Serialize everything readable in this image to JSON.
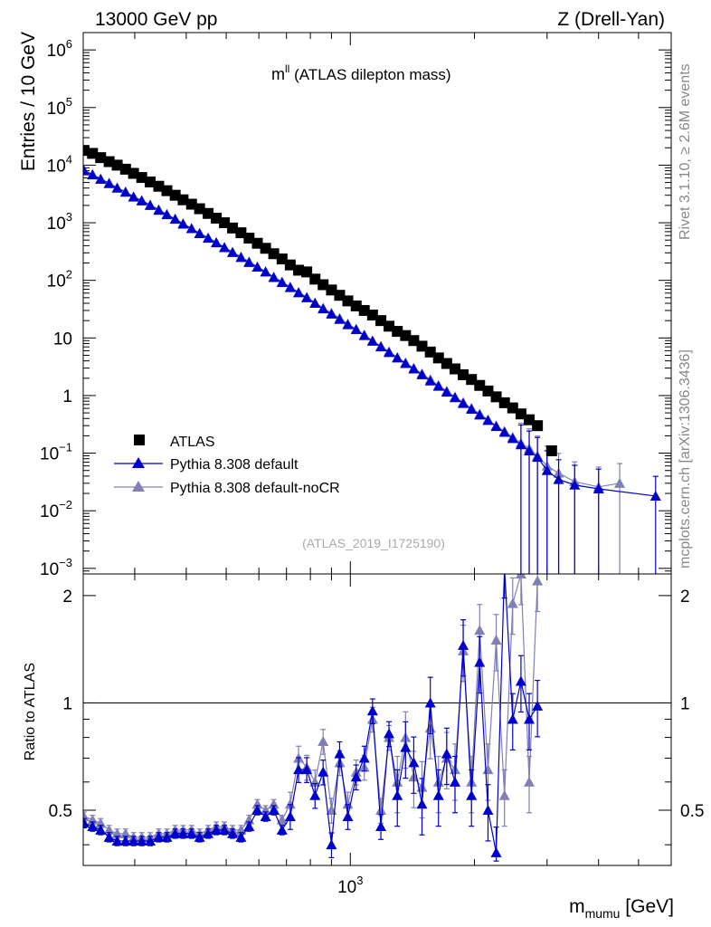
{
  "header": {
    "left": "13000 GeV pp",
    "right": "Z (Drell-Yan)",
    "side_top": "Rivet 3.1.10, ≥ 2.6M events",
    "side_bottom": "mcplots.cern.ch [arXiv:1306.3436]"
  },
  "chart_data": {
    "type": "scatter",
    "title_main": "m",
    "title_sup": "ll",
    "title_rest": " (ATLAS dilepton mass)",
    "ylabel": "Entries / 10 GeV",
    "ratio_ylabel": "Ratio to ATLAS",
    "xlabel_main": "m",
    "xlabel_sub": "mumu",
    "xlabel_unit": " [GeV]",
    "analysis": "(ATLAS_2019_I1725190)",
    "x_scale": "log",
    "y_scale": "log",
    "xlim": [
      225,
      6000
    ],
    "ylim": [
      0.0008,
      2000000
    ],
    "ratio_ylim": [
      0.35,
      2.3
    ],
    "x_ticks": [
      {
        "value": 1000,
        "base": "10",
        "exp": "3"
      }
    ],
    "y_ticks": [
      {
        "value": 1000000,
        "base": "10",
        "exp": "6"
      },
      {
        "value": 100000,
        "base": "10",
        "exp": "5"
      },
      {
        "value": 10000,
        "base": "10",
        "exp": "4"
      },
      {
        "value": 1000,
        "base": "10",
        "exp": "3"
      },
      {
        "value": 100,
        "base": "10",
        "exp": "2"
      },
      {
        "value": 10,
        "base": "10",
        "exp": ""
      },
      {
        "value": 1,
        "base": "1",
        "exp": ""
      },
      {
        "value": 0.1,
        "base": "10",
        "exp": "−1"
      },
      {
        "value": 0.01,
        "base": "10",
        "exp": "−2"
      },
      {
        "value": 0.001,
        "base": "10",
        "exp": "−3"
      }
    ],
    "ratio_ticks": [
      {
        "value": 0.5,
        "label": "0.5"
      },
      {
        "value": 1,
        "label": "1"
      },
      {
        "value": 2,
        "label": "2"
      }
    ],
    "legend_position": "lower-left",
    "colors": {
      "data": "#000000",
      "default": "#0000cc",
      "nocr": "#8080b4"
    },
    "series": [
      {
        "name": "ATLAS",
        "marker": "square",
        "x": [
          226,
          237,
          248,
          260,
          272,
          285,
          298,
          312,
          327,
          343,
          359,
          376,
          393,
          412,
          431,
          452,
          473,
          495,
          518,
          543,
          568,
          595,
          623,
          652,
          683,
          715,
          749,
          784,
          821,
          859,
          900,
          942,
          986,
          1033,
          1081,
          1132,
          1186,
          1241,
          1300,
          1361,
          1425,
          1492,
          1563,
          1636,
          1713,
          1794,
          1878,
          1967,
          2059,
          2157,
          2258,
          2365,
          2476,
          2593,
          2715,
          2843,
          3077
        ],
        "values": [
          18000,
          16000,
          13500,
          11500,
          10000,
          8500,
          7200,
          6100,
          5100,
          4300,
          3600,
          3000,
          2500,
          2100,
          1750,
          1450,
          1200,
          1000,
          810,
          670,
          540,
          440,
          360,
          290,
          235,
          185,
          150,
          140,
          105,
          84,
          68,
          55,
          44,
          36,
          30,
          25,
          20,
          16,
          13,
          11,
          9,
          7.2,
          5.7,
          4.5,
          3.6,
          2.9,
          2.3,
          1.9,
          1.5,
          1.2,
          0.95,
          0.75,
          0.61,
          0.48,
          0.38,
          0.3,
          0.11
        ]
      },
      {
        "name": "Pythia 8.308 default",
        "marker": "triangle",
        "x": [
          226,
          237,
          248,
          260,
          272,
          285,
          298,
          312,
          327,
          343,
          359,
          376,
          393,
          412,
          431,
          452,
          473,
          495,
          518,
          543,
          568,
          595,
          623,
          652,
          683,
          715,
          749,
          784,
          821,
          859,
          900,
          942,
          986,
          1033,
          1081,
          1132,
          1186,
          1241,
          1300,
          1361,
          1425,
          1492,
          1563,
          1636,
          1713,
          1794,
          1878,
          1967,
          2059,
          2157,
          2258,
          2365,
          2476,
          2593,
          2715,
          2843,
          3000,
          3200,
          3500,
          4000,
          5500
        ],
        "values": [
          8000,
          6800,
          5700,
          4800,
          4000,
          3400,
          2800,
          2400,
          2000,
          1650,
          1380,
          1150,
          950,
          790,
          650,
          540,
          450,
          370,
          305,
          250,
          205,
          170,
          140,
          112,
          92,
          75,
          61,
          50,
          40,
          32,
          26,
          21,
          17,
          14,
          11,
          8.8,
          7,
          5.6,
          4.5,
          3.6,
          2.9,
          2.3,
          1.8,
          1.45,
          1.15,
          0.92,
          0.73,
          0.58,
          0.46,
          0.37,
          0.29,
          0.23,
          0.18,
          0.14,
          0.11,
          0.085,
          0.05,
          0.035,
          0.028,
          0.024,
          0.018
        ]
      },
      {
        "name": "Pythia 8.308 default-noCR",
        "marker": "triangle",
        "x": [
          226,
          237,
          248,
          260,
          272,
          285,
          298,
          312,
          327,
          343,
          359,
          376,
          393,
          412,
          431,
          452,
          473,
          495,
          518,
          543,
          568,
          595,
          623,
          652,
          683,
          715,
          749,
          784,
          821,
          859,
          900,
          942,
          986,
          1033,
          1081,
          1132,
          1186,
          1241,
          1300,
          1361,
          1425,
          1492,
          1563,
          1636,
          1713,
          1794,
          1878,
          1967,
          2059,
          2157,
          2258,
          2365,
          2476,
          2593,
          2715,
          2843,
          3000,
          3200,
          3500,
          4000,
          4500
        ],
        "values": [
          8200,
          6900,
          5800,
          4900,
          4050,
          3450,
          2850,
          2450,
          2050,
          1700,
          1400,
          1170,
          970,
          800,
          660,
          550,
          455,
          375,
          310,
          255,
          210,
          172,
          142,
          115,
          94,
          77,
          62,
          51,
          41,
          33,
          27,
          22,
          17.5,
          14.2,
          11.3,
          9,
          7.2,
          5.8,
          4.6,
          3.7,
          3,
          2.4,
          1.9,
          1.5,
          1.2,
          0.95,
          0.76,
          0.6,
          0.48,
          0.38,
          0.3,
          0.24,
          0.19,
          0.15,
          0.12,
          0.09,
          0.06,
          0.045,
          0.032,
          0.026,
          0.03
        ]
      }
    ],
    "ratio_series": [
      {
        "name": "Pythia 8.308 default",
        "x": [
          226,
          237,
          248,
          260,
          272,
          285,
          298,
          312,
          327,
          343,
          359,
          376,
          393,
          412,
          431,
          452,
          473,
          495,
          518,
          543,
          568,
          595,
          623,
          652,
          683,
          715,
          749,
          784,
          821,
          859,
          900,
          942,
          986,
          1033,
          1081,
          1132,
          1186,
          1241,
          1300,
          1361,
          1425,
          1492,
          1563,
          1636,
          1713,
          1794,
          1878,
          1967,
          2059,
          2157,
          2258,
          2365,
          2476,
          2593,
          2715,
          2843
        ],
        "values": [
          0.46,
          0.45,
          0.44,
          0.42,
          0.41,
          0.41,
          0.41,
          0.41,
          0.41,
          0.42,
          0.42,
          0.43,
          0.43,
          0.43,
          0.42,
          0.43,
          0.44,
          0.44,
          0.43,
          0.42,
          0.45,
          0.5,
          0.48,
          0.5,
          0.44,
          0.48,
          0.65,
          0.65,
          0.55,
          0.64,
          0.4,
          0.72,
          0.48,
          0.62,
          0.7,
          0.95,
          0.45,
          0.82,
          0.55,
          0.75,
          0.68,
          0.52,
          1.0,
          0.55,
          0.72,
          0.6,
          1.45,
          0.55,
          1.3,
          0.5,
          0.38,
          2.4,
          0.9,
          1.15,
          0.9,
          0.98
        ]
      },
      {
        "name": "Pythia 8.308 default-noCR",
        "x": [
          226,
          237,
          248,
          260,
          272,
          285,
          298,
          312,
          327,
          343,
          359,
          376,
          393,
          412,
          431,
          452,
          473,
          495,
          518,
          543,
          568,
          595,
          623,
          652,
          683,
          715,
          749,
          784,
          821,
          859,
          900,
          942,
          986,
          1033,
          1081,
          1132,
          1186,
          1241,
          1300,
          1361,
          1425,
          1492,
          1563,
          1636,
          1713,
          1794,
          1878,
          1967,
          2059,
          2157,
          2258,
          2365,
          2476,
          2593,
          2715,
          2843
        ],
        "values": [
          0.48,
          0.47,
          0.46,
          0.44,
          0.43,
          0.43,
          0.42,
          0.42,
          0.42,
          0.43,
          0.43,
          0.44,
          0.44,
          0.44,
          0.43,
          0.44,
          0.45,
          0.45,
          0.44,
          0.44,
          0.47,
          0.52,
          0.5,
          0.52,
          0.47,
          0.52,
          0.7,
          0.66,
          0.6,
          0.78,
          0.5,
          0.68,
          0.52,
          0.64,
          0.66,
          0.9,
          0.5,
          0.8,
          0.6,
          0.8,
          0.62,
          0.58,
          0.85,
          0.6,
          0.7,
          0.65,
          1.4,
          0.6,
          1.6,
          0.65,
          1.5,
          0.55,
          1.9,
          2.3,
          0.6,
          2.2
        ]
      }
    ]
  }
}
